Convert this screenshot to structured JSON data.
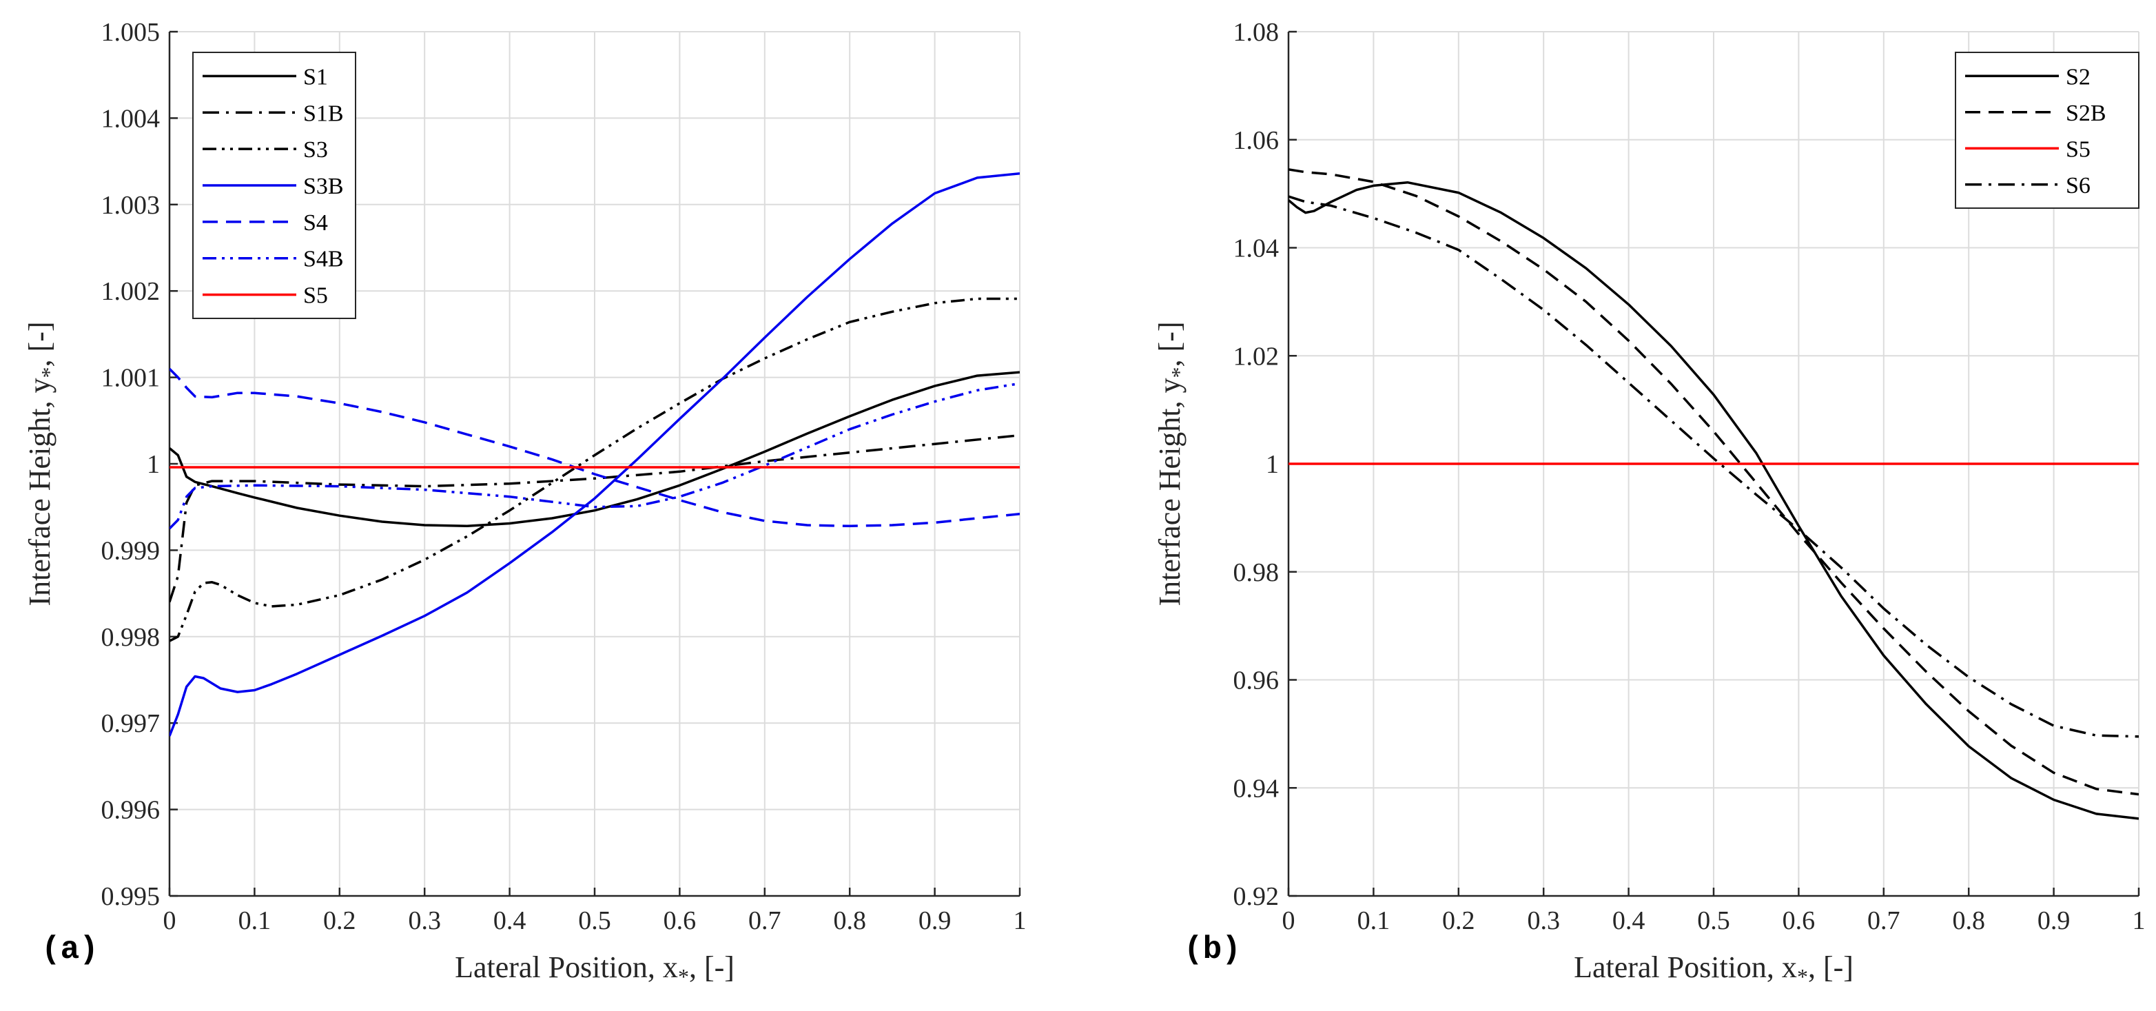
{
  "chart_data": [
    {
      "type": "line",
      "panel_label": "(a)",
      "xlabel": "Lateral Position, x",
      "xlabel_sub": "*",
      "xlabel_tail": ", [-]",
      "ylabel": "Interface Height, y",
      "ylabel_sub": "*",
      "ylabel_tail": ", [-]",
      "xlim": [
        0,
        1
      ],
      "ylim": [
        0.995,
        1.005
      ],
      "xticks": [
        0,
        0.1,
        0.2,
        0.3,
        0.4,
        0.5,
        0.6,
        0.7,
        0.8,
        0.9,
        1
      ],
      "xtick_labels": [
        "0",
        "0.1",
        "0.2",
        "0.3",
        "0.4",
        "0.5",
        "0.6",
        "0.7",
        "0.8",
        "0.9",
        "1"
      ],
      "yticks": [
        0.995,
        0.996,
        0.997,
        0.998,
        0.999,
        1,
        1.001,
        1.002,
        1.003,
        1.004,
        1.005
      ],
      "ytick_labels": [
        "0.995",
        "0.996",
        "0.997",
        "0.998",
        "0.999",
        "1",
        "1.001",
        "1.002",
        "1.003",
        "1.004",
        "1.005"
      ],
      "grid": true,
      "legend_position": "top-left",
      "series": [
        {
          "name": "S1",
          "color": "#000000",
          "dash": "solid",
          "x": [
            0,
            0.01,
            0.02,
            0.03,
            0.05,
            0.08,
            0.1,
            0.15,
            0.2,
            0.25,
            0.3,
            0.35,
            0.4,
            0.45,
            0.5,
            0.55,
            0.6,
            0.65,
            0.7,
            0.75,
            0.8,
            0.85,
            0.9,
            0.95,
            1
          ],
          "y": [
            1.00018,
            1.0001,
            0.99985,
            0.99979,
            0.99974,
            0.99966,
            0.99961,
            0.99949,
            0.9994,
            0.99933,
            0.99929,
            0.99928,
            0.99931,
            0.99937,
            0.99946,
            0.99959,
            0.99975,
            0.99994,
            1.00014,
            1.00035,
            1.00055,
            1.00074,
            1.0009,
            1.00102,
            1.00106
          ]
        },
        {
          "name": "S1B",
          "color": "#000000",
          "dash": "dashdot",
          "x": [
            0,
            0.01,
            0.02,
            0.03,
            0.05,
            0.1,
            0.2,
            0.3,
            0.4,
            0.5,
            0.6,
            0.7,
            0.8,
            0.9,
            1
          ],
          "y": [
            0.9984,
            0.9987,
            0.99955,
            0.99975,
            0.9998,
            0.9998,
            0.99976,
            0.99974,
            0.99977,
            0.99983,
            0.99991,
            1.00003,
            1.00013,
            1.00023,
            1.00033
          ]
        },
        {
          "name": "S3",
          "color": "#000000",
          "dash": "dashdotdot",
          "x": [
            0,
            0.01,
            0.02,
            0.03,
            0.04,
            0.05,
            0.06,
            0.08,
            0.1,
            0.12,
            0.15,
            0.2,
            0.25,
            0.3,
            0.35,
            0.4,
            0.45,
            0.5,
            0.55,
            0.6,
            0.65,
            0.7,
            0.75,
            0.8,
            0.85,
            0.9,
            0.95,
            1
          ],
          "y": [
            0.99795,
            0.998,
            0.99825,
            0.99852,
            0.99862,
            0.99863,
            0.9986,
            0.99848,
            0.99839,
            0.99835,
            0.99837,
            0.99848,
            0.99866,
            0.99889,
            0.99916,
            0.99946,
            0.99978,
            1.0001,
            1.00041,
            1.0007,
            1.00098,
            1.00122,
            1.00144,
            1.00164,
            1.00176,
            1.00186,
            1.00191,
            1.00191
          ]
        },
        {
          "name": "S3B",
          "color": "#0000ee",
          "dash": "solid",
          "x": [
            0,
            0.01,
            0.02,
            0.03,
            0.04,
            0.06,
            0.08,
            0.1,
            0.12,
            0.15,
            0.2,
            0.25,
            0.3,
            0.35,
            0.4,
            0.45,
            0.5,
            0.55,
            0.6,
            0.65,
            0.7,
            0.75,
            0.8,
            0.85,
            0.9,
            0.95,
            1
          ],
          "y": [
            0.99685,
            0.9971,
            0.99742,
            0.99754,
            0.99752,
            0.9974,
            0.99736,
            0.99738,
            0.99745,
            0.99757,
            0.99779,
            0.99801,
            0.99824,
            0.99851,
            0.99885,
            0.99921,
            0.9996,
            1.00005,
            1.00052,
            1.00098,
            1.00146,
            1.00193,
            1.00237,
            1.00278,
            1.00313,
            1.00331,
            1.00336
          ]
        },
        {
          "name": "S4",
          "color": "#0000ee",
          "dash": "dashed",
          "x": [
            0,
            0.01,
            0.02,
            0.03,
            0.05,
            0.08,
            0.1,
            0.15,
            0.2,
            0.25,
            0.3,
            0.35,
            0.4,
            0.45,
            0.5,
            0.55,
            0.6,
            0.65,
            0.7,
            0.75,
            0.8,
            0.85,
            0.9,
            0.95,
            1
          ],
          "y": [
            1.0011,
            1.001,
            1.00088,
            1.00078,
            1.00077,
            1.00082,
            1.00082,
            1.00078,
            1.0007,
            1.0006,
            1.00048,
            1.00034,
            1.0002,
            1.00005,
            0.99988,
            0.99973,
            0.99958,
            0.99944,
            0.99934,
            0.99929,
            0.99928,
            0.99929,
            0.99932,
            0.99937,
            0.99942
          ]
        },
        {
          "name": "S4B",
          "color": "#0000ee",
          "dash": "dashdotdot",
          "x": [
            0,
            0.01,
            0.02,
            0.03,
            0.05,
            0.1,
            0.2,
            0.3,
            0.4,
            0.45,
            0.5,
            0.55,
            0.6,
            0.65,
            0.7,
            0.75,
            0.8,
            0.85,
            0.9,
            0.95,
            1
          ],
          "y": [
            0.99925,
            0.99935,
            0.99962,
            0.99972,
            0.99974,
            0.99975,
            0.99974,
            0.9997,
            0.99962,
            0.99956,
            0.9995,
            0.99951,
            0.99962,
            0.99978,
            0.99998,
            1.00019,
            1.0004,
            1.00057,
            1.00072,
            1.00085,
            1.00093
          ]
        },
        {
          "name": "S5",
          "color": "#ff0000",
          "dash": "solid",
          "x": [
            0,
            1
          ],
          "y": [
            0.99996,
            0.99996
          ]
        }
      ]
    },
    {
      "type": "line",
      "panel_label": "(b)",
      "xlabel": "Lateral Position, x",
      "xlabel_sub": "*",
      "xlabel_tail": ", [-]",
      "ylabel": "Interface Height, y",
      "ylabel_sub": "*",
      "ylabel_tail": ", [-]",
      "xlim": [
        0,
        1
      ],
      "ylim": [
        0.92,
        1.08
      ],
      "xticks": [
        0,
        0.1,
        0.2,
        0.3,
        0.4,
        0.5,
        0.6,
        0.7,
        0.8,
        0.9,
        1
      ],
      "xtick_labels": [
        "0",
        "0.1",
        "0.2",
        "0.3",
        "0.4",
        "0.5",
        "0.6",
        "0.7",
        "0.8",
        "0.9",
        "1"
      ],
      "yticks": [
        0.92,
        0.94,
        0.96,
        0.98,
        1,
        1.02,
        1.04,
        1.06,
        1.08
      ],
      "ytick_labels": [
        "0.92",
        "0.94",
        "0.96",
        "0.98",
        "1",
        "1.02",
        "1.04",
        "1.06",
        "1.08"
      ],
      "grid": true,
      "legend_position": "top-right",
      "series": [
        {
          "name": "S2",
          "color": "#000000",
          "dash": "solid",
          "x": [
            0,
            0.01,
            0.02,
            0.03,
            0.05,
            0.08,
            0.1,
            0.14,
            0.2,
            0.25,
            0.3,
            0.35,
            0.4,
            0.45,
            0.5,
            0.55,
            0.6,
            0.65,
            0.7,
            0.75,
            0.8,
            0.85,
            0.9,
            0.95,
            1
          ],
          "y": [
            1.0488,
            1.0475,
            1.0465,
            1.0468,
            1.0485,
            1.0507,
            1.0515,
            1.0521,
            1.0502,
            1.0465,
            1.0418,
            1.0362,
            1.0295,
            1.0218,
            1.0128,
            1.002,
            0.9885,
            0.9755,
            0.9645,
            0.9555,
            0.9477,
            0.9418,
            0.9378,
            0.9352,
            0.9343
          ]
        },
        {
          "name": "S2B",
          "color": "#000000",
          "dash": "dashed",
          "x": [
            0,
            0.02,
            0.05,
            0.1,
            0.15,
            0.2,
            0.25,
            0.3,
            0.35,
            0.4,
            0.45,
            0.5,
            0.55,
            0.6,
            0.65,
            0.7,
            0.75,
            0.8,
            0.85,
            0.9,
            0.95,
            1
          ],
          "y": [
            1.0545,
            1.054,
            1.0536,
            1.0522,
            1.0496,
            1.0458,
            1.0412,
            1.036,
            1.03,
            1.0228,
            1.0148,
            1.006,
            0.9965,
            0.987,
            0.978,
            0.9695,
            0.9615,
            0.9542,
            0.9478,
            0.9428,
            0.9398,
            0.9388
          ]
        },
        {
          "name": "S5",
          "color": "#ff0000",
          "dash": "solid",
          "x": [
            0,
            1
          ],
          "y": [
            1.0,
            1.0
          ]
        },
        {
          "name": "S6",
          "color": "#000000",
          "dash": "dashdot",
          "x": [
            0,
            0.02,
            0.05,
            0.1,
            0.15,
            0.2,
            0.25,
            0.3,
            0.35,
            0.4,
            0.45,
            0.5,
            0.55,
            0.6,
            0.65,
            0.7,
            0.75,
            0.8,
            0.85,
            0.9,
            0.95,
            1
          ],
          "y": [
            1.0495,
            1.0485,
            1.0478,
            1.0455,
            1.0428,
            1.0396,
            1.0342,
            1.0285,
            1.022,
            1.015,
            1.008,
            1.001,
            0.9943,
            0.9878,
            0.9808,
            0.9732,
            0.9665,
            0.9605,
            0.9555,
            0.9515,
            0.9497,
            0.9495
          ]
        }
      ]
    }
  ]
}
